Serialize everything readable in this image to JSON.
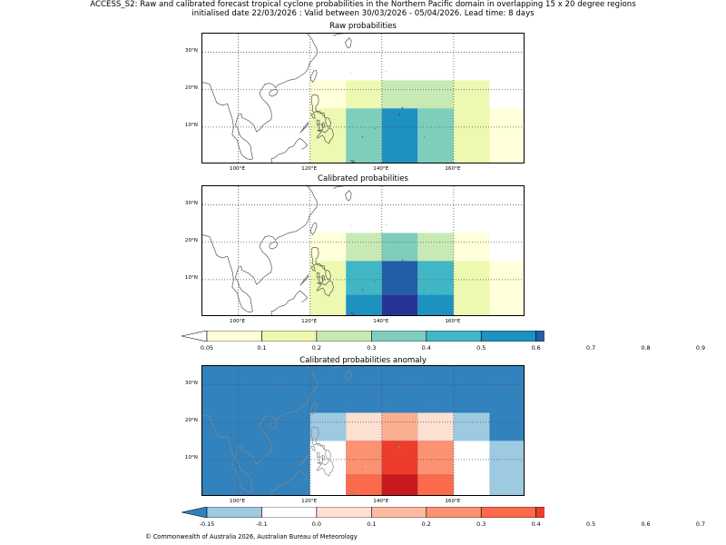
{
  "title": {
    "line1": "ACCESS_S2: Raw and calibrated forecast tropical cyclone probabilities in the Northern Pacific domain in overlapping 15 x 20 degree regions",
    "line2": "initialised date 22/03/2026 :  Valid between 30/03/2026 - 05/04/2026. Lead time: 8 days"
  },
  "chart_data": {
    "type": "heatmap",
    "lon_range": [
      90,
      180
    ],
    "lat_range": [
      0,
      35
    ],
    "lon_ticks": [
      "100°E",
      "120°E",
      "140°E",
      "160°E"
    ],
    "lat_ticks": [
      "10°N",
      "20°N",
      "30°N"
    ],
    "lon_tick_values": [
      100,
      120,
      140,
      160
    ],
    "lat_tick_values": [
      10,
      20,
      30
    ],
    "panels": [
      {
        "id": "raw",
        "title": "Raw probabilities",
        "colorbar": "prob",
        "cells": [
          {
            "lon": [
              120,
              130
            ],
            "lat": [
              15,
              22.5
            ],
            "color": "#ffffd9"
          },
          {
            "lon": [
              130,
              140
            ],
            "lat": [
              15,
              22.5
            ],
            "color": "#edf8b1"
          },
          {
            "lon": [
              140,
              160
            ],
            "lat": [
              15,
              22.5
            ],
            "color": "#c7e9b4"
          },
          {
            "lon": [
              160,
              170
            ],
            "lat": [
              15,
              22.5
            ],
            "color": "#edf8b1"
          },
          {
            "lon": [
              170,
              180
            ],
            "lat": [
              0,
              15
            ],
            "color": "#ffffd9"
          },
          {
            "lon": [
              120,
              130
            ],
            "lat": [
              0,
              15
            ],
            "color": "#edf8b1"
          },
          {
            "lon": [
              130,
              140
            ],
            "lat": [
              0,
              15
            ],
            "color": "#7fcdbb"
          },
          {
            "lon": [
              140,
              150
            ],
            "lat": [
              0,
              15
            ],
            "color": "#1d91c0"
          },
          {
            "lon": [
              150,
              160
            ],
            "lat": [
              0,
              15
            ],
            "color": "#7fcdbb"
          },
          {
            "lon": [
              160,
              170
            ],
            "lat": [
              0,
              15
            ],
            "color": "#edf8b1"
          }
        ]
      },
      {
        "id": "calibrated",
        "title": "Calibrated probabilities",
        "colorbar": "prob",
        "cells": [
          {
            "lon": [
              120,
              130
            ],
            "lat": [
              15,
              22.5
            ],
            "color": "#ffffd9"
          },
          {
            "lon": [
              130,
              140
            ],
            "lat": [
              15,
              22.5
            ],
            "color": "#c7e9b4"
          },
          {
            "lon": [
              140,
              150
            ],
            "lat": [
              15,
              22.5
            ],
            "color": "#7fcdbb"
          },
          {
            "lon": [
              150,
              160
            ],
            "lat": [
              15,
              22.5
            ],
            "color": "#c7e9b4"
          },
          {
            "lon": [
              160,
              170
            ],
            "lat": [
              15,
              22.5
            ],
            "color": "#ffffd9"
          },
          {
            "lon": [
              170,
              180
            ],
            "lat": [
              0,
              15
            ],
            "color": "#ffffd9"
          },
          {
            "lon": [
              120,
              130
            ],
            "lat": [
              0,
              15
            ],
            "color": "#edf8b1"
          },
          {
            "lon": [
              130,
              140
            ],
            "lat": [
              6,
              15
            ],
            "color": "#41b6c4"
          },
          {
            "lon": [
              140,
              150
            ],
            "lat": [
              6,
              15
            ],
            "color": "#225ea8"
          },
          {
            "lon": [
              150,
              160
            ],
            "lat": [
              6,
              15
            ],
            "color": "#41b6c4"
          },
          {
            "lon": [
              130,
              140
            ],
            "lat": [
              0,
              6
            ],
            "color": "#1d91c0"
          },
          {
            "lon": [
              140,
              150
            ],
            "lat": [
              0,
              6
            ],
            "color": "#253494"
          },
          {
            "lon": [
              150,
              160
            ],
            "lat": [
              0,
              6
            ],
            "color": "#1d91c0"
          },
          {
            "lon": [
              160,
              170
            ],
            "lat": [
              0,
              15
            ],
            "color": "#edf8b1"
          }
        ]
      },
      {
        "id": "anomaly",
        "title": "Calibrated probabilities anomaly",
        "colorbar": "anom",
        "background": "#3182bd",
        "cells": [
          {
            "lon": [
              120,
              130
            ],
            "lat": [
              15,
              22.5
            ],
            "color": "#9ecae1"
          },
          {
            "lon": [
              130,
              140
            ],
            "lat": [
              15,
              22.5
            ],
            "color": "#fee0d2"
          },
          {
            "lon": [
              140,
              150
            ],
            "lat": [
              15,
              22.5
            ],
            "color": "#fcae91"
          },
          {
            "lon": [
              150,
              160
            ],
            "lat": [
              15,
              22.5
            ],
            "color": "#fee0d2"
          },
          {
            "lon": [
              160,
              170
            ],
            "lat": [
              15,
              22.5
            ],
            "color": "#9ecae1"
          },
          {
            "lon": [
              120,
              130
            ],
            "lat": [
              0,
              15
            ],
            "color": "#ffffff"
          },
          {
            "lon": [
              130,
              140
            ],
            "lat": [
              6,
              15
            ],
            "color": "#fc9272"
          },
          {
            "lon": [
              140,
              150
            ],
            "lat": [
              6,
              15
            ],
            "color": "#ef3b2c"
          },
          {
            "lon": [
              150,
              160
            ],
            "lat": [
              6,
              15
            ],
            "color": "#fc9272"
          },
          {
            "lon": [
              130,
              140
            ],
            "lat": [
              0,
              6
            ],
            "color": "#fb6a4a"
          },
          {
            "lon": [
              140,
              150
            ],
            "lat": [
              0,
              6
            ],
            "color": "#cb181d"
          },
          {
            "lon": [
              150,
              160
            ],
            "lat": [
              0,
              6
            ],
            "color": "#fb6a4a"
          },
          {
            "lon": [
              160,
              170
            ],
            "lat": [
              0,
              15
            ],
            "color": "#ffffff"
          },
          {
            "lon": [
              170,
              180
            ],
            "lat": [
              0,
              15
            ],
            "color": "#9ecae1"
          }
        ]
      }
    ],
    "colorbars": {
      "prob": {
        "labels": [
          "0.05",
          "0.1",
          "0.2",
          "0.3",
          "0.4",
          "0.5",
          "0.6",
          "0.7",
          "0.8",
          "0.9"
        ],
        "under": "#ffffff",
        "over": "#081d58",
        "colors": [
          "#ffffd9",
          "#edf8b1",
          "#c7e9b4",
          "#7fcdbb",
          "#41b6c4",
          "#1d91c0",
          "#225ea8",
          "#253494",
          "#081d58"
        ]
      },
      "anom": {
        "labels": [
          "-0.15",
          "-0.1",
          "0.0",
          "0.1",
          "0.2",
          "0.3",
          "0.4",
          "0.5",
          "0.6",
          "0.7"
        ],
        "under": "#3182bd",
        "over": "#99000d",
        "colors": [
          "#9ecae1",
          "#ffffff",
          "#fee0d2",
          "#fcbba1",
          "#fc9272",
          "#fb6a4a",
          "#ef3b2c",
          "#cb181d",
          "#a50f15"
        ]
      }
    }
  },
  "copyright": "© Commonwealth of Australia 2026, Australian Bureau of Meteorology"
}
